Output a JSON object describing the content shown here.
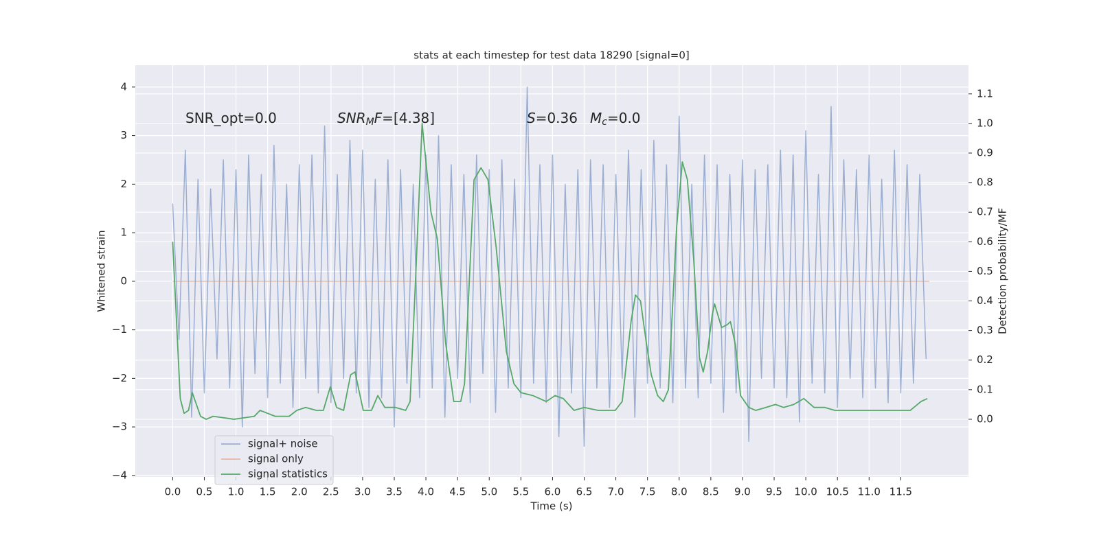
{
  "chart_data": {
    "type": "line",
    "title": "stats at each timestep for test data 18290 [signal=0]",
    "xlabel": "Time (s)",
    "ylabel": "Whitened strain",
    "y2label": "Detection probability/MF",
    "xlim": [
      -0.59,
      12.57
    ],
    "ylim": [
      -4.03,
      4.45
    ],
    "y2lim": [
      -0.195,
      1.197
    ],
    "xticks": [
      {
        "value": 0,
        "label": "0.0"
      },
      0.5,
      {
        "value": 1,
        "label": "1.0"
      },
      1.5,
      {
        "value": 2,
        "label": "2.0"
      },
      2.5,
      {
        "value": 3,
        "label": "3.0"
      },
      3.5,
      {
        "value": 4,
        "label": "4.0"
      },
      4.5,
      {
        "value": 5,
        "label": "5.0"
      },
      5.5,
      {
        "value": 6,
        "label": "6.0"
      },
      6.5,
      {
        "value": 7,
        "label": "7.0"
      },
      7.5,
      {
        "value": 8,
        "label": "8.0"
      },
      8.5,
      {
        "value": 9,
        "label": "9.0"
      },
      9.5,
      {
        "value": 10,
        "label": "10.0"
      },
      10.5,
      {
        "value": 11,
        "label": "11.0"
      },
      11.5
    ],
    "yticks": [
      {
        "value": -4,
        "label": "−4"
      },
      {
        "value": -3,
        "label": "−3"
      },
      {
        "value": -2,
        "label": "−2"
      },
      {
        "value": -1,
        "label": "−1"
      },
      0,
      1,
      2,
      3,
      4
    ],
    "y2ticks": [
      {
        "value": 0,
        "label": "0.0"
      },
      0.1,
      0.2,
      0.3,
      0.4,
      0.5,
      0.6,
      0.7,
      0.8,
      0.9,
      {
        "value": 1,
        "label": "1.0"
      },
      1.1
    ],
    "grid": true,
    "legend": "lower left",
    "annotations": [
      {
        "parts": [
          {
            "text": "SNR_opt=0.0",
            "style": "normal"
          }
        ]
      },
      {
        "parts": [
          {
            "text": "SNR",
            "style": "italic"
          },
          {
            "text": "M",
            "style": "italic-sub"
          },
          {
            "text": "F",
            "style": "italic"
          },
          {
            "text": "=[4.38]",
            "style": "normal"
          }
        ]
      },
      {
        "parts": [
          {
            "text": "S",
            "style": "italic"
          },
          {
            "text": "=0.36",
            "style": "normal"
          }
        ]
      },
      {
        "parts": [
          {
            "text": "M",
            "style": "italic"
          },
          {
            "text": "c",
            "style": "italic-sub"
          },
          {
            "text": "=0.0",
            "style": "normal"
          }
        ]
      }
    ],
    "series": [
      {
        "name": "signal+ noise",
        "color": "#4c72b0",
        "opacity": 0.5,
        "axis": "y",
        "x": [
          0,
          0.1,
          0.2,
          0.3,
          0.4,
          0.5,
          0.6,
          0.7,
          0.8,
          0.9,
          1,
          1.1,
          1.2,
          1.3,
          1.4,
          1.5,
          1.6,
          1.7,
          1.8,
          1.9,
          2,
          2.1,
          2.2,
          2.3,
          2.4,
          2.5,
          2.6,
          2.7,
          2.8,
          2.9,
          3,
          3.1,
          3.2,
          3.3,
          3.4,
          3.5,
          3.6,
          3.7,
          3.8,
          3.9,
          4,
          4.1,
          4.2,
          4.3,
          4.4,
          4.5,
          4.6,
          4.7,
          4.8,
          4.9,
          5,
          5.1,
          5.2,
          5.3,
          5.4,
          5.5,
          5.6,
          5.7,
          5.8,
          5.9,
          6,
          6.1,
          6.2,
          6.3,
          6.4,
          6.5,
          6.6,
          6.7,
          6.8,
          6.9,
          7,
          7.1,
          7.2,
          7.3,
          7.4,
          7.5,
          7.6,
          7.7,
          7.8,
          7.9,
          8,
          8.1,
          8.2,
          8.3,
          8.4,
          8.5,
          8.6,
          8.7,
          8.8,
          8.9,
          9,
          9.1,
          9.2,
          9.3,
          9.4,
          9.5,
          9.6,
          9.7,
          9.8,
          9.9,
          10,
          10.1,
          10.2,
          10.3,
          10.4,
          10.5,
          10.6,
          10.7,
          10.8,
          10.9,
          11,
          11.1,
          11.2,
          11.3,
          11.4,
          11.5,
          11.6,
          11.7,
          11.8,
          11.9
        ],
        "values": [
          1.6,
          -1.2,
          2.7,
          -2.8,
          2.1,
          -2.3,
          1.9,
          -1.6,
          2.5,
          -2.2,
          2.3,
          -3.0,
          2.6,
          -1.9,
          2.2,
          -2.4,
          2.8,
          -2.1,
          2.0,
          -2.6,
          2.4,
          -2.0,
          2.6,
          -2.3,
          3.2,
          -2.5,
          2.2,
          -2.0,
          2.9,
          -2.3,
          2.7,
          -2.6,
          2.1,
          -2.4,
          2.5,
          -3.0,
          2.3,
          -2.1,
          2.0,
          -2.4,
          2.6,
          -2.2,
          3.0,
          -2.8,
          2.4,
          -2.0,
          2.2,
          -2.5,
          2.6,
          -1.9,
          2.3,
          -2.7,
          2.5,
          -2.2,
          2.1,
          -2.4,
          4.0,
          -2.1,
          2.4,
          -2.5,
          2.6,
          -3.2,
          2.0,
          -2.3,
          2.3,
          -3.4,
          2.5,
          -2.2,
          2.4,
          -2.6,
          2.2,
          -2.0,
          2.7,
          -2.8,
          2.3,
          -2.1,
          2.9,
          -2.2,
          2.4,
          -2.5,
          3.4,
          -2.2,
          2.0,
          -2.4,
          2.6,
          -2.1,
          2.4,
          -2.7,
          2.2,
          -2.3,
          2.5,
          -3.3,
          2.3,
          -2.0,
          2.4,
          -2.2,
          2.7,
          -2.4,
          2.6,
          -2.9,
          3.1,
          -2.1,
          2.2,
          -2.3,
          3.6,
          -2.6,
          2.5,
          -2.0,
          2.3,
          -2.4,
          2.6,
          -2.2,
          2.1,
          -2.5,
          2.7,
          -2.3,
          2.4,
          -2.1,
          2.2,
          -1.6
        ]
      },
      {
        "name": "signal only",
        "color": "#dd8452",
        "opacity": 0.5,
        "axis": "y",
        "x": [
          0,
          11.95
        ],
        "values": [
          0,
          0
        ]
      },
      {
        "name": "signal statistics",
        "color": "#55a868",
        "opacity": 1,
        "axis": "y2",
        "x": [
          0,
          0.12,
          0.18,
          0.25,
          0.31,
          0.44,
          0.53,
          0.64,
          0.97,
          1.29,
          1.38,
          1.62,
          1.84,
          1.96,
          2.1,
          2.27,
          2.38,
          2.49,
          2.59,
          2.7,
          2.81,
          2.88,
          3.01,
          3.14,
          3.24,
          3.35,
          3.52,
          3.68,
          3.75,
          3.84,
          3.94,
          4.08,
          4.18,
          4.31,
          4.44,
          4.55,
          4.61,
          4.76,
          4.87,
          4.98,
          5.11,
          5.27,
          5.39,
          5.5,
          5.69,
          5.9,
          6.04,
          6.17,
          6.34,
          6.5,
          6.72,
          6.85,
          6.99,
          7.1,
          7.24,
          7.31,
          7.39,
          7.48,
          7.56,
          7.66,
          7.75,
          7.83,
          7.96,
          8.05,
          8.13,
          8.23,
          8.32,
          8.38,
          8.45,
          8.52,
          8.56,
          8.67,
          8.76,
          8.81,
          8.89,
          8.97,
          9.1,
          9.21,
          9.37,
          9.52,
          9.65,
          9.81,
          9.97,
          10.13,
          10.3,
          10.46,
          10.57,
          10.68,
          10.84,
          11.0,
          11.16,
          11.38,
          11.49,
          11.65,
          11.82,
          11.92
        ],
        "values": [
          0.6,
          0.07,
          0.02,
          0.03,
          0.09,
          0.01,
          0.0,
          0.01,
          0.0,
          0.01,
          0.03,
          0.01,
          0.01,
          0.03,
          0.04,
          0.03,
          0.03,
          0.11,
          0.04,
          0.03,
          0.15,
          0.16,
          0.03,
          0.03,
          0.08,
          0.04,
          0.04,
          0.03,
          0.06,
          0.49,
          1.0,
          0.7,
          0.61,
          0.26,
          0.06,
          0.06,
          0.12,
          0.81,
          0.85,
          0.81,
          0.58,
          0.23,
          0.12,
          0.09,
          0.08,
          0.06,
          0.08,
          0.07,
          0.03,
          0.04,
          0.03,
          0.03,
          0.03,
          0.06,
          0.33,
          0.42,
          0.4,
          0.26,
          0.15,
          0.08,
          0.06,
          0.1,
          0.65,
          0.87,
          0.81,
          0.54,
          0.21,
          0.16,
          0.23,
          0.35,
          0.39,
          0.31,
          0.32,
          0.33,
          0.25,
          0.08,
          0.04,
          0.03,
          0.04,
          0.05,
          0.04,
          0.05,
          0.07,
          0.04,
          0.04,
          0.03,
          0.03,
          0.03,
          0.03,
          0.03,
          0.03,
          0.03,
          0.03,
          0.03,
          0.06,
          0.07
        ]
      }
    ]
  }
}
